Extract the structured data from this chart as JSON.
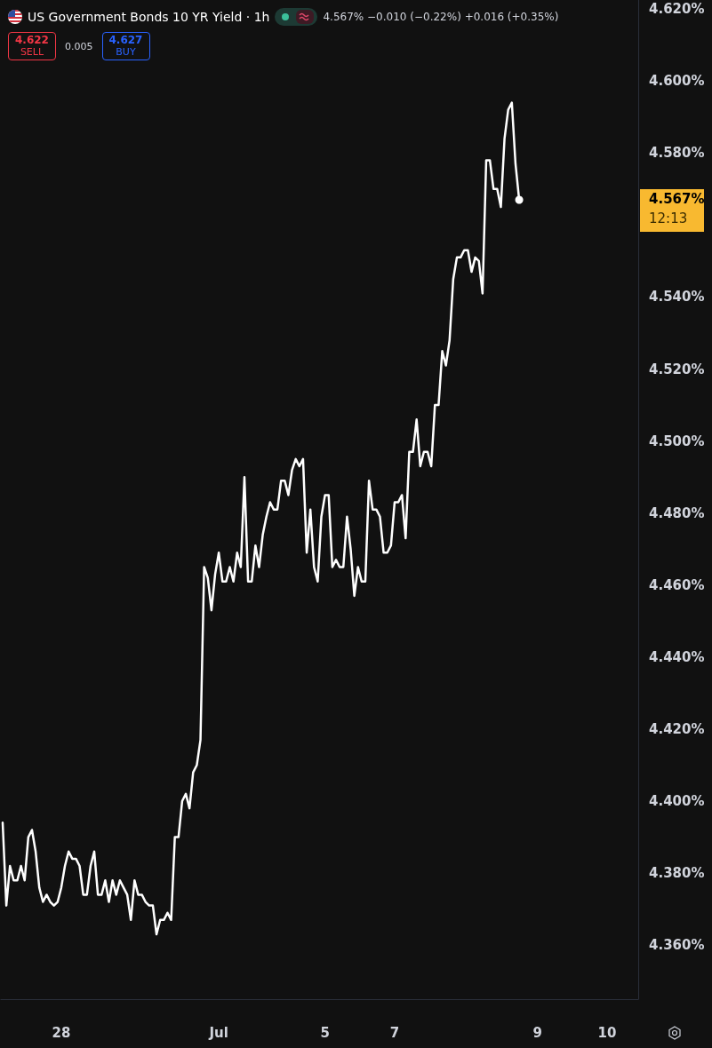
{
  "chart_data": {
    "type": "line",
    "title": "US Government Bonds 10 YR Yield · 1h",
    "annotations": [
      "4.567%  −0.010 (−0.22%)  +0.016 (+0.35%)",
      "4.622",
      "SELL",
      "0.005",
      "4.627",
      "BUY",
      "4.567%",
      "12:13"
    ],
    "categories": [
      null,
      null,
      null,
      null,
      null,
      null,
      null,
      null,
      null,
      null,
      null,
      null,
      null,
      null,
      null,
      null,
      "28",
      null,
      null,
      null,
      null,
      null,
      null,
      null,
      null,
      null,
      null,
      null,
      null,
      null,
      null,
      null,
      null,
      null,
      null,
      null,
      null,
      null,
      null,
      null,
      null,
      null,
      null,
      null,
      null,
      null,
      null,
      null,
      null,
      null,
      null,
      null,
      null,
      null,
      null,
      null,
      null,
      null,
      null,
      "Jul",
      null,
      null,
      null,
      null,
      null,
      null,
      null,
      null,
      null,
      null,
      null,
      null,
      null,
      null,
      null,
      null,
      null,
      null,
      null,
      null,
      null,
      null,
      null,
      null,
      null,
      null,
      null,
      null,
      "5",
      null,
      null,
      null,
      null,
      null,
      null,
      null,
      null,
      null,
      null,
      null,
      null,
      null,
      null,
      null,
      null,
      null,
      null,
      "7",
      null,
      null,
      null,
      null,
      null,
      null,
      null,
      null,
      null,
      null,
      null,
      null,
      null,
      null,
      null,
      null,
      null,
      null,
      null,
      null,
      null,
      null,
      null,
      null,
      null,
      null,
      null,
      null,
      null,
      null,
      null,
      null,
      null,
      null,
      null,
      null,
      null,
      null,
      "9",
      null,
      null,
      null,
      null,
      null,
      null,
      null,
      null,
      null,
      null,
      null,
      null,
      null,
      null,
      null,
      null,
      null,
      null,
      "10",
      null,
      null,
      null,
      null,
      null,
      null,
      null,
      null
    ],
    "series": [
      {
        "color": "#ffffff",
        "values": [
          4.394,
          4.371,
          4.382,
          4.378,
          4.378,
          4.382,
          4.378,
          4.39,
          4.392,
          4.386,
          4.376,
          4.372,
          4.374,
          4.372,
          4.371,
          4.372,
          4.376,
          4.382,
          4.386,
          4.384,
          4.384,
          4.382,
          4.374,
          4.374,
          4.382,
          4.386,
          4.374,
          4.374,
          4.378,
          4.372,
          4.378,
          4.374,
          4.378,
          4.376,
          4.374,
          4.367,
          4.378,
          4.374,
          4.374,
          4.372,
          4.371,
          4.371,
          4.363,
          4.367,
          4.367,
          4.369,
          4.367,
          4.39,
          4.39,
          4.4,
          4.402,
          4.398,
          4.408,
          4.41,
          4.417,
          4.465,
          4.462,
          4.453,
          4.463,
          4.469,
          4.461,
          4.461,
          4.465,
          4.461,
          4.469,
          4.465,
          4.49,
          4.461,
          4.461,
          4.471,
          4.465,
          4.474,
          4.479,
          4.483,
          4.481,
          4.481,
          4.489,
          4.489,
          4.485,
          4.492,
          4.495,
          4.493,
          4.495,
          4.469,
          4.481,
          4.465,
          4.461,
          4.479,
          4.485,
          4.485,
          4.465,
          4.467,
          4.465,
          4.465,
          4.479,
          4.47,
          4.457,
          4.465,
          4.461,
          4.461,
          4.489,
          4.481,
          4.481,
          4.479,
          4.469,
          4.469,
          4.471,
          4.483,
          4.483,
          4.485,
          4.473,
          4.497,
          4.497,
          4.506,
          4.493,
          4.497,
          4.497,
          4.493,
          4.51,
          4.51,
          4.525,
          4.521,
          4.528,
          4.545,
          4.551,
          4.551,
          4.553,
          4.553,
          4.547,
          4.551,
          4.55,
          4.541,
          4.578,
          4.578,
          4.57,
          4.57,
          4.565,
          4.584,
          4.592,
          4.594,
          4.577,
          4.567,
          null,
          null,
          null,
          null,
          null,
          null,
          null,
          null,
          null,
          null,
          null,
          null,
          null,
          null,
          null,
          null,
          null,
          null,
          null,
          null,
          null,
          null,
          null,
          null,
          null,
          null,
          null,
          null,
          null,
          null,
          null,
          null
        ]
      }
    ],
    "ylim": [
      4.345,
      4.6225
    ],
    "yticks": [
      {
        "value": 4.36,
        "label": "4.360%"
      },
      {
        "value": 4.38,
        "label": "4.380%"
      },
      {
        "value": 4.4,
        "label": "4.400%"
      },
      {
        "value": 4.42,
        "label": "4.420%"
      },
      {
        "value": 4.44,
        "label": "4.440%"
      },
      {
        "value": 4.46,
        "label": "4.460%"
      },
      {
        "value": 4.48,
        "label": "4.480%"
      },
      {
        "value": 4.5,
        "label": "4.500%"
      },
      {
        "value": 4.52,
        "label": "4.520%"
      },
      {
        "value": 4.54,
        "label": "4.540%"
      },
      {
        "value": 4.58,
        "label": "4.580%"
      },
      {
        "value": 4.6,
        "label": "4.600%"
      },
      {
        "value": 4.62,
        "label": "4.620%"
      }
    ],
    "grid": false,
    "line_style": "solid"
  }
}
